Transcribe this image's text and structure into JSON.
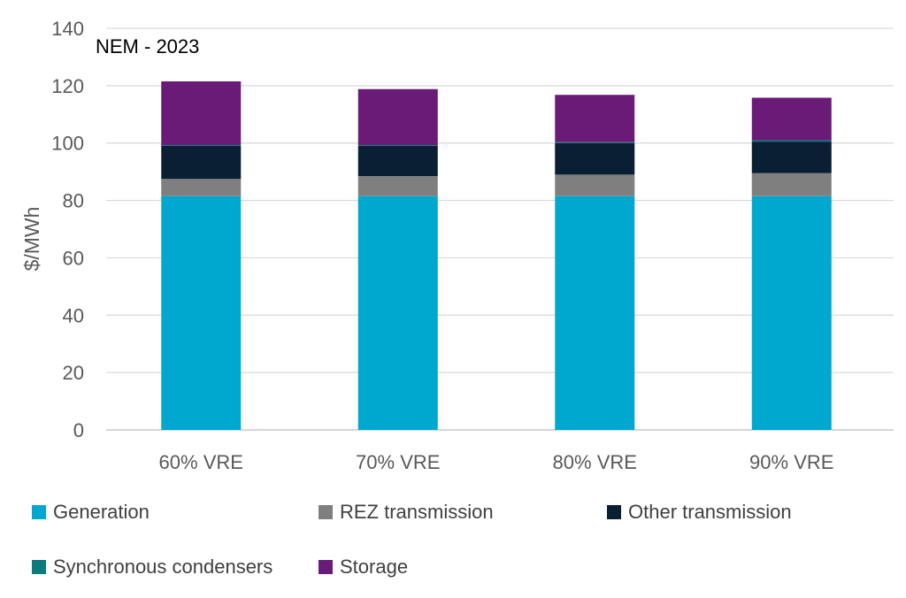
{
  "chart_data": {
    "type": "bar",
    "stacked": true,
    "title": "NEM - 2023",
    "ylabel": "$/MWh",
    "xlabel": "",
    "ylim": [
      0,
      140
    ],
    "yticks": [
      0,
      20,
      40,
      60,
      80,
      100,
      120,
      140
    ],
    "grid": true,
    "legend_position": "bottom",
    "categories": [
      "60% VRE",
      "70% VRE",
      "80% VRE",
      "90% VRE"
    ],
    "series": [
      {
        "name": "Generation",
        "color": "#00a8cf",
        "values": [
          81.5,
          81.5,
          81.5,
          81.5
        ]
      },
      {
        "name": "REZ transmission",
        "color": "#7f7f7f",
        "values": [
          6,
          7,
          7.5,
          8
        ]
      },
      {
        "name": "Other transmission",
        "color": "#0a1f33",
        "values": [
          11.5,
          10.5,
          11,
          11
        ]
      },
      {
        "name": "Synchronous condensers",
        "color": "#0c7b7b",
        "values": [
          0.3,
          0.3,
          0.3,
          0.5
        ]
      },
      {
        "name": "Storage",
        "color": "#6a1b78",
        "values": [
          22.2,
          19.5,
          16.5,
          14.8
        ]
      }
    ]
  }
}
